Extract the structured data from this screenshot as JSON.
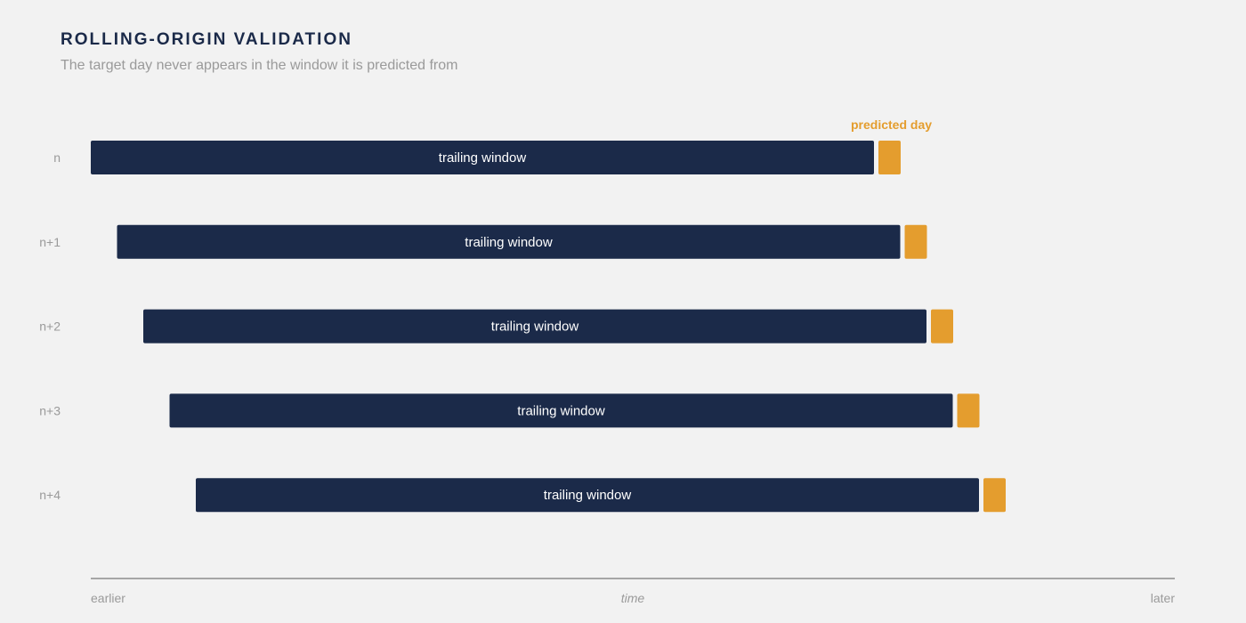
{
  "header": {
    "title": "ROLLING-ORIGIN VALIDATION",
    "subtitle": "The target day never appears in the window it is predicted from"
  },
  "colors": {
    "window": "#1b2a49",
    "predicted": "#e49d2e",
    "muted": "#9a9a9a",
    "axis": "#a6a6a6"
  },
  "predicted_label": "predicted day",
  "axis": {
    "start_label": "earlier",
    "middle_label": "time",
    "end_label": "later"
  },
  "rows": [
    {
      "label": "n",
      "window_label": "trailing window",
      "offset": 0
    },
    {
      "label": "n+1",
      "window_label": "trailing window",
      "offset": 1
    },
    {
      "label": "n+2",
      "window_label": "trailing window",
      "offset": 2
    },
    {
      "label": "n+3",
      "window_label": "trailing window",
      "offset": 3
    },
    {
      "label": "n+4",
      "window_label": "trailing window",
      "offset": 4
    }
  ]
}
